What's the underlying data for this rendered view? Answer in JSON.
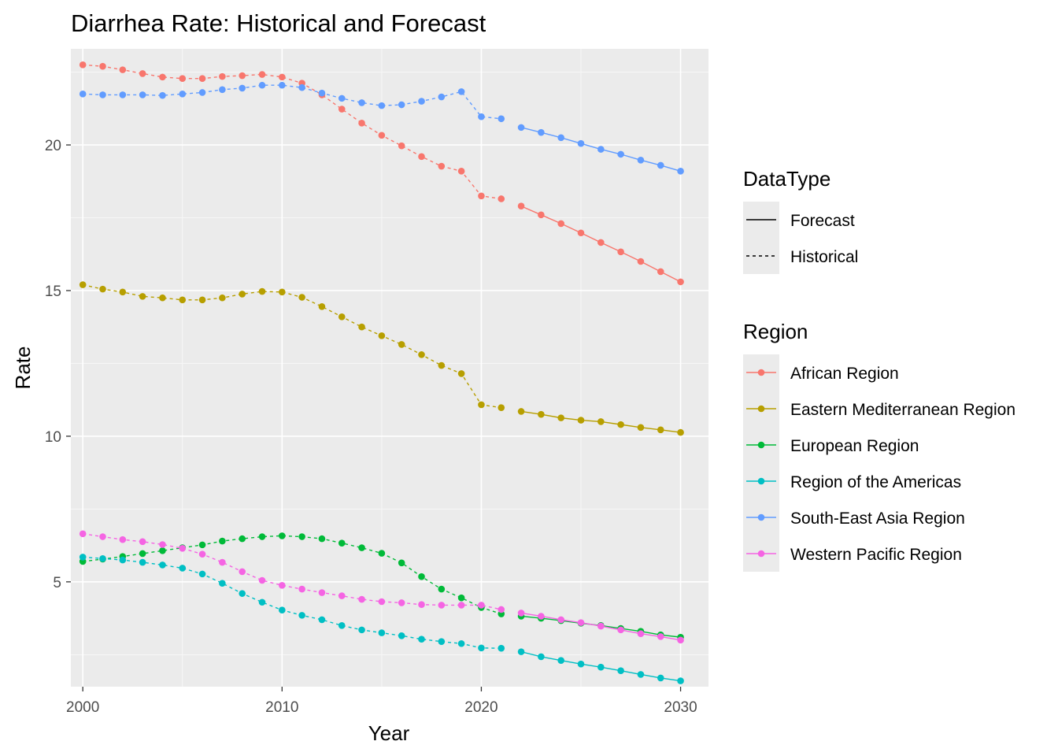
{
  "chart_data": {
    "type": "line",
    "title": "Diarrhea Rate: Historical and Forecast",
    "xlabel": "Year",
    "ylabel": "Rate",
    "xlim": [
      1999.4,
      2031.4
    ],
    "ylim": [
      1.4,
      23.3
    ],
    "x_ticks": [
      2000,
      2010,
      2020,
      2030
    ],
    "y_ticks": [
      5,
      10,
      15,
      20
    ],
    "x_ticks_text": [
      "2000",
      "2010",
      "2020",
      "2030"
    ],
    "y_ticks_text": [
      "5",
      "10",
      "15",
      "20"
    ],
    "grid": true,
    "legend_position": "right",
    "historical_years": [
      2000,
      2001,
      2002,
      2003,
      2004,
      2005,
      2006,
      2007,
      2008,
      2009,
      2010,
      2011,
      2012,
      2013,
      2014,
      2015,
      2016,
      2017,
      2018,
      2019,
      2020,
      2021
    ],
    "forecast_years": [
      2022,
      2023,
      2024,
      2025,
      2026,
      2027,
      2028,
      2029,
      2030
    ],
    "legends": [
      {
        "title": "DataType",
        "kind": "linetype",
        "entries": [
          {
            "label": "Forecast",
            "dash": "solid"
          },
          {
            "label": "Historical",
            "dash": "dashed"
          }
        ]
      },
      {
        "title": "Region",
        "kind": "color",
        "entries": [
          {
            "label": "African Region",
            "color": "#F8766D"
          },
          {
            "label": "Eastern Mediterranean Region",
            "color": "#B79F00"
          },
          {
            "label": "European Region",
            "color": "#00BA38"
          },
          {
            "label": "Region of the Americas",
            "color": "#00BFC4"
          },
          {
            "label": "South-East Asia Region",
            "color": "#619CFF"
          },
          {
            "label": "Western Pacific Region",
            "color": "#F564E3"
          }
        ]
      }
    ],
    "series": [
      {
        "name": "African Region",
        "color": "#F8766D",
        "historical": [
          22.75,
          22.7,
          22.58,
          22.45,
          22.33,
          22.28,
          22.28,
          22.35,
          22.38,
          22.42,
          22.33,
          22.12,
          21.72,
          21.23,
          20.75,
          20.33,
          19.97,
          19.6,
          19.27,
          19.1,
          18.25,
          18.15
        ],
        "forecast": [
          17.9,
          17.6,
          17.3,
          16.98,
          16.65,
          16.33,
          16.0,
          15.65,
          15.3
        ]
      },
      {
        "name": "Eastern Mediterranean Region",
        "color": "#B79F00",
        "historical": [
          15.2,
          15.05,
          14.95,
          14.8,
          14.75,
          14.68,
          14.68,
          14.75,
          14.88,
          14.97,
          14.95,
          14.77,
          14.45,
          14.1,
          13.75,
          13.45,
          13.15,
          12.8,
          12.43,
          12.15,
          11.08,
          10.98
        ],
        "forecast": [
          10.85,
          10.75,
          10.63,
          10.55,
          10.5,
          10.4,
          10.3,
          10.22,
          10.13
        ]
      },
      {
        "name": "European Region",
        "color": "#00BA38",
        "historical": [
          5.7,
          5.78,
          5.87,
          5.97,
          6.07,
          6.17,
          6.27,
          6.4,
          6.48,
          6.55,
          6.58,
          6.55,
          6.48,
          6.33,
          6.17,
          5.98,
          5.65,
          5.18,
          4.75,
          4.45,
          4.12,
          3.9
        ],
        "forecast": [
          3.82,
          3.75,
          3.67,
          3.58,
          3.5,
          3.4,
          3.3,
          3.18,
          3.1
        ]
      },
      {
        "name": "Region of the Americas",
        "color": "#00BFC4",
        "historical": [
          5.85,
          5.8,
          5.75,
          5.67,
          5.58,
          5.47,
          5.27,
          4.95,
          4.6,
          4.3,
          4.03,
          3.85,
          3.7,
          3.5,
          3.35,
          3.25,
          3.15,
          3.03,
          2.95,
          2.88,
          2.73,
          2.72
        ],
        "forecast": [
          2.6,
          2.43,
          2.3,
          2.18,
          2.07,
          1.95,
          1.82,
          1.7,
          1.6
        ]
      },
      {
        "name": "South-East Asia Region",
        "color": "#619CFF",
        "historical": [
          21.75,
          21.72,
          21.72,
          21.72,
          21.7,
          21.75,
          21.8,
          21.9,
          21.95,
          22.05,
          22.05,
          21.97,
          21.78,
          21.6,
          21.45,
          21.35,
          21.38,
          21.5,
          21.65,
          21.83,
          20.97,
          20.9
        ],
        "forecast": [
          20.6,
          20.43,
          20.25,
          20.05,
          19.85,
          19.68,
          19.48,
          19.3,
          19.1
        ]
      },
      {
        "name": "Western Pacific Region",
        "color": "#F564E3",
        "historical": [
          6.65,
          6.55,
          6.45,
          6.38,
          6.28,
          6.15,
          5.95,
          5.67,
          5.35,
          5.05,
          4.88,
          4.75,
          4.63,
          4.52,
          4.4,
          4.32,
          4.28,
          4.22,
          4.2,
          4.2,
          4.2,
          4.05
        ],
        "forecast": [
          3.93,
          3.82,
          3.7,
          3.6,
          3.48,
          3.35,
          3.22,
          3.12,
          3.0
        ]
      }
    ]
  }
}
